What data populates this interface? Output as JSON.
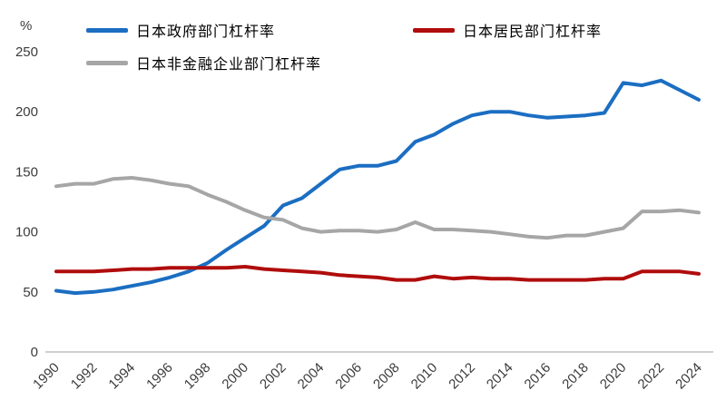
{
  "chart_data": {
    "type": "line",
    "title": "",
    "ylabel": "%",
    "xlabel": "",
    "ylim": [
      0,
      250
    ],
    "yticks": [
      0,
      50,
      100,
      150,
      200,
      250
    ],
    "xtick_every": 2,
    "grid": false,
    "legend_position": "top",
    "x": [
      1990,
      1991,
      1992,
      1993,
      1994,
      1995,
      1996,
      1997,
      1998,
      1999,
      2000,
      2001,
      2002,
      2003,
      2004,
      2005,
      2006,
      2007,
      2008,
      2009,
      2010,
      2011,
      2012,
      2013,
      2014,
      2015,
      2016,
      2017,
      2018,
      2019,
      2020,
      2021,
      2022,
      2023,
      2024
    ],
    "series": [
      {
        "id": "government",
        "name": "日本政府部门杠杆率",
        "color": "#1b6ec2",
        "values": [
          51,
          49,
          50,
          52,
          55,
          58,
          62,
          67,
          74,
          85,
          95,
          105,
          122,
          128,
          140,
          152,
          155,
          155,
          159,
          175,
          181,
          190,
          197,
          200,
          200,
          197,
          195,
          196,
          197,
          199,
          224,
          222,
          226,
          218,
          210
        ]
      },
      {
        "id": "household",
        "name": "日本居民部门杠杆率",
        "color": "#b00c0c",
        "values": [
          67,
          67,
          67,
          68,
          69,
          69,
          70,
          70,
          70,
          70,
          71,
          69,
          68,
          67,
          66,
          64,
          63,
          62,
          60,
          60,
          63,
          61,
          62,
          61,
          61,
          60,
          60,
          60,
          60,
          61,
          61,
          67,
          67,
          67,
          65
        ]
      },
      {
        "id": "nonfinancial-corporate",
        "name": "日本非金融企业部门杠杆率",
        "color": "#a6a6a6",
        "values": [
          138,
          140,
          140,
          144,
          145,
          143,
          140,
          138,
          131,
          125,
          118,
          112,
          110,
          103,
          100,
          101,
          101,
          100,
          102,
          108,
          102,
          102,
          101,
          100,
          98,
          96,
          95,
          97,
          97,
          100,
          103,
          117,
          117,
          118,
          116
        ]
      }
    ]
  }
}
